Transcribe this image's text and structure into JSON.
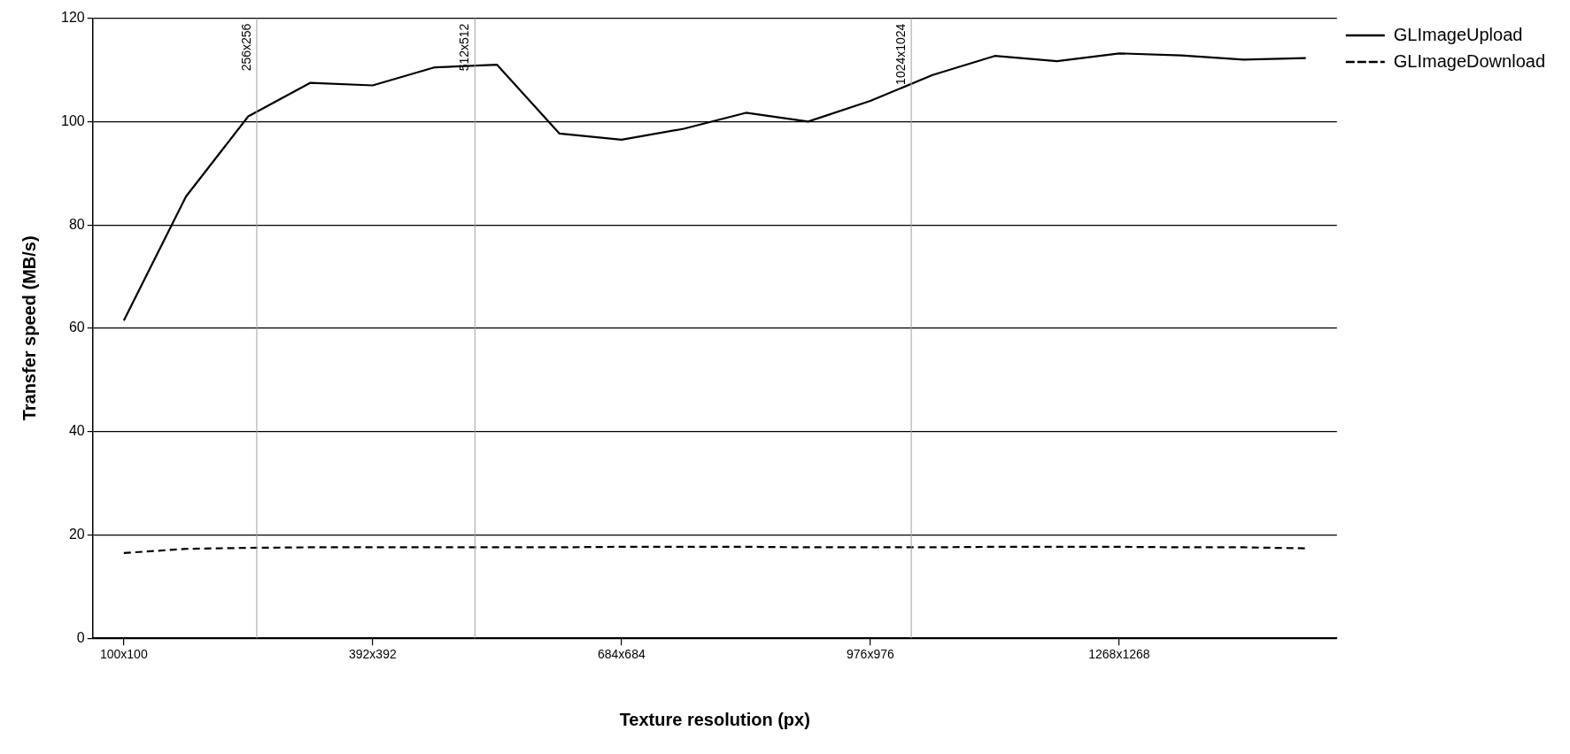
{
  "chart_data": {
    "type": "line",
    "xlabel": "Texture resolution (px)",
    "ylabel": "Transfer speed (MB/s)",
    "categories": [
      "100x100",
      null,
      null,
      null,
      "392x392",
      null,
      null,
      null,
      "684x684",
      null,
      null,
      null,
      "976x976",
      null,
      null,
      null,
      "1268x1268",
      null,
      null,
      null
    ],
    "series": [
      {
        "name": "GLImageUpload",
        "color": "#000000",
        "line_style": "solid",
        "values": [
          61.5,
          85.5,
          101,
          107.5,
          107,
          110.5,
          111,
          97.7,
          96.5,
          98.6,
          101.7,
          100,
          104,
          109,
          112.7,
          111.7,
          113.2,
          112.8,
          112,
          112.3
        ]
      },
      {
        "name": "GLImageDownload",
        "color": "#000000",
        "line_style": "dashed",
        "values": [
          16.5,
          17.3,
          17.5,
          17.6,
          17.6,
          17.6,
          17.6,
          17.6,
          17.7,
          17.7,
          17.7,
          17.6,
          17.6,
          17.6,
          17.7,
          17.7,
          17.7,
          17.6,
          17.6,
          17.4
        ]
      }
    ],
    "ylim": [
      0,
      120
    ],
    "yticks": [
      0,
      20,
      40,
      60,
      80,
      100,
      120
    ],
    "annotations": [
      "256x256",
      "512x512",
      "1024x1024"
    ],
    "grid": "y",
    "legend": "top right",
    "marker": "none"
  }
}
